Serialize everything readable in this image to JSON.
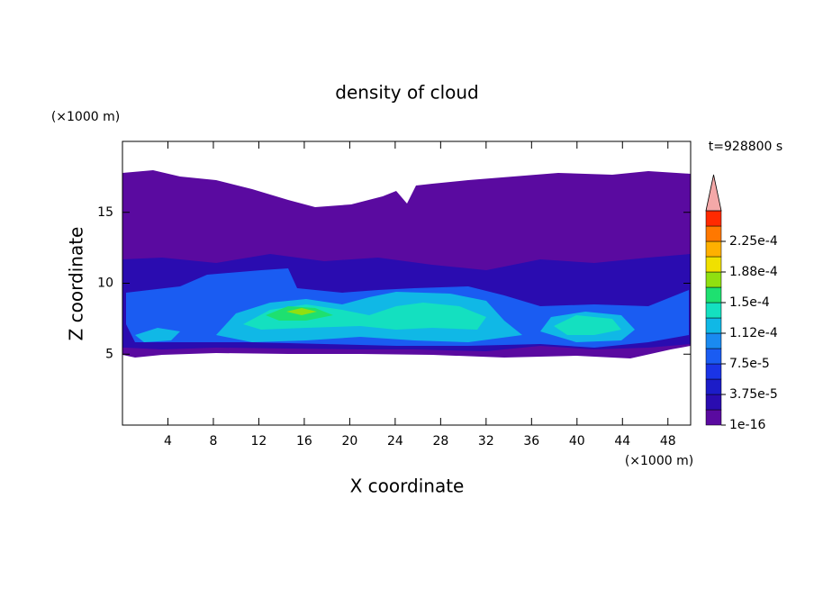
{
  "chart_data": {
    "type": "contour",
    "title": "density of cloud",
    "x_label": "X coordinate",
    "y_label": "Z coordinate",
    "x_unit": "(×1000 m)",
    "y_unit": "(×1000 m)",
    "time_label": "t=928800 s",
    "xlim": [
      0,
      50
    ],
    "ylim": [
      0,
      20
    ],
    "xticks": [
      4,
      8,
      12,
      16,
      20,
      24,
      28,
      32,
      36,
      40,
      44,
      48
    ],
    "yticks": [
      5,
      10,
      15
    ],
    "colorbar": {
      "levels": [
        1e-16,
        1.875e-05,
        3.75e-05,
        5.625e-05,
        7.5e-05,
        9.375e-05,
        0.0001125,
        0.00013125,
        0.00015,
        0.00016875,
        0.0001875,
        0.00020625,
        0.000225,
        0.00024375
      ],
      "colors": [
        "#5a0aa0",
        "#2a0cb0",
        "#1c1cc8",
        "#1a34e6",
        "#1a5cf2",
        "#1a8af0",
        "#10b8e6",
        "#14e0c0",
        "#1ee070",
        "#90e010",
        "#f0e000",
        "#ffb000",
        "#ff7800",
        "#ff2a00"
      ],
      "over_color": "#f4a8a8",
      "ticks": [
        1e-16,
        {
          "value": 3.75e-05,
          "label": "3.75e-5"
        },
        {
          "value": 7.5e-05,
          "label": "7.5e-5"
        },
        {
          "value": 0.0001125,
          "label": "1.12e-4"
        },
        {
          "value": 0.00015,
          "label": "1.5e-4"
        },
        {
          "value": 0.0001875,
          "label": "1.88e-4"
        },
        {
          "value": 0.000225,
          "label": "2.25e-4"
        }
      ]
    }
  }
}
